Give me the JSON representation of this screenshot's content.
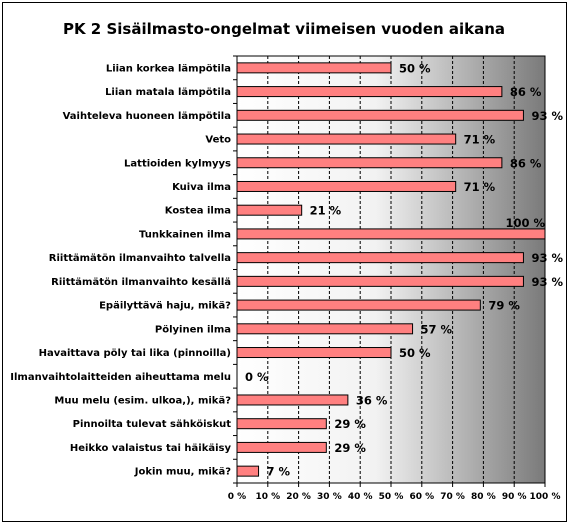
{
  "chart_data": {
    "type": "bar",
    "orientation": "horizontal",
    "title": "PK 2 Sisäilmasto-ongelmat viimeisen vuoden aikana",
    "categories": [
      "Liian korkea lämpötila",
      "Liian matala lämpötila",
      "Vaihteleva huoneen lämpötila",
      "Veto",
      "Lattioiden kylmyys",
      "Kuiva ilma",
      "Kostea ilma",
      "Tunkkainen ilma",
      "Riittämätön ilmanvaihto talvella",
      "Riittämätön ilmanvaihto kesällä",
      "Epäilyttävä haju, mikä?",
      "Pölyinen ilma",
      "Havaittava pöly tai lika (pinnoilla)",
      "Ilmanvaihtolaitteiden aiheuttama melu",
      "Muu melu (esim. ulkoa,), mikä?",
      "Pinnoilta tulevat sähköiskut",
      "Heikko valaistus tai häikäisy",
      "Jokin muu, mikä?"
    ],
    "values": [
      50,
      86,
      93,
      71,
      86,
      71,
      21,
      100,
      93,
      93,
      79,
      57,
      50,
      0,
      36,
      29,
      29,
      7
    ],
    "data_labels": [
      "50 %",
      "86 %",
      "93 %",
      "71 %",
      "86 %",
      "71 %",
      "21 %",
      "100 %",
      "93 %",
      "93 %",
      "79 %",
      "57 %",
      "50 %",
      "0 %",
      "36 %",
      "29 %",
      "29 %",
      "7 %"
    ],
    "x_ticks": [
      "0 %",
      "10 %",
      "20 %",
      "30 %",
      "40 %",
      "50 %",
      "60 %",
      "70 %",
      "80 %",
      "90 %",
      "100 %"
    ],
    "xlim": [
      0,
      100
    ],
    "grid": true,
    "bar_color": "#FF8080",
    "plot_background": "gradient white to gray"
  }
}
